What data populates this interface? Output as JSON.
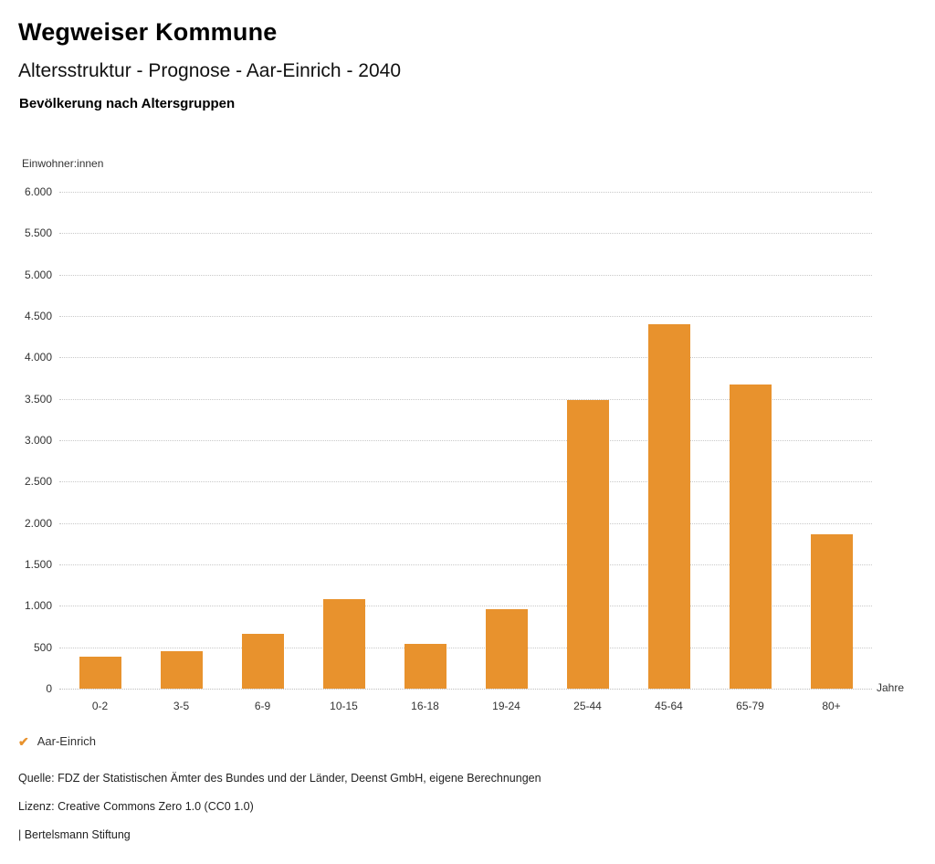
{
  "header": {
    "title": "Wegweiser Kommune",
    "subtitle": "Altersstruktur - Prognose - Aar-Einrich - 2040",
    "chart_heading": "Bevölkerung nach Altersgruppen"
  },
  "chart_data": {
    "type": "bar",
    "title": "Bevölkerung nach Altersgruppen",
    "categories": [
      "0-2",
      "3-5",
      "6-9",
      "10-15",
      "16-18",
      "19-24",
      "25-44",
      "45-64",
      "65-79",
      "80+"
    ],
    "series": [
      {
        "name": "Aar-Einrich",
        "values": [
          390,
          450,
          660,
          1080,
          540,
          960,
          3480,
          4400,
          3670,
          1860
        ]
      }
    ],
    "xlabel": "Jahre",
    "ylabel": "Einwohner:innen",
    "ylim": [
      0,
      6000
    ],
    "ytick_step": 500,
    "ytick_labels": [
      "0",
      "500",
      "1.000",
      "1.500",
      "2.000",
      "2.500",
      "3.000",
      "3.500",
      "4.000",
      "4.500",
      "5.000",
      "5.500",
      "6.000"
    ],
    "grid": "horizontal dotted",
    "legend_position": "bottom-left",
    "bar_color": "#E8922D"
  },
  "legend": {
    "marker": "✔"
  },
  "footer": {
    "source": "Quelle: FDZ der Statistischen Ämter des Bundes und der Länder, Deenst GmbH, eigene Berechnungen",
    "license": "Lizenz: Creative Commons Zero 1.0 (CC0 1.0)",
    "attribution": "| Bertelsmann Stiftung"
  }
}
